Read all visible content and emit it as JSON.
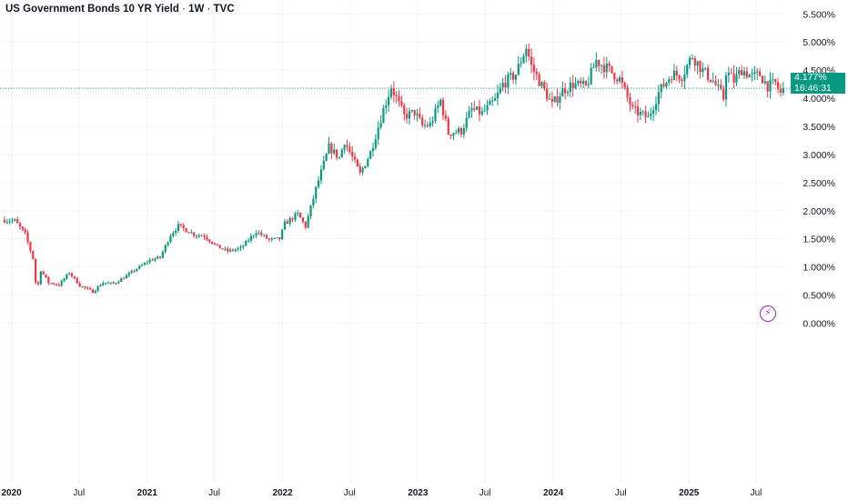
{
  "header": {
    "symbol": "US Government Bonds 10 YR Yield",
    "interval": "1W",
    "source": "TVC",
    "separator": "·"
  },
  "price_tag": {
    "value": "4.177%",
    "countdown": "16:46:31",
    "color": "#089981"
  },
  "colors": {
    "up": "#089981",
    "down": "#f23645",
    "grid": "#f0f3fa",
    "axis_text": "#131722",
    "price_line": "#089981",
    "alert_icon": "#9c27b0"
  },
  "alert_icon": "lightning-icon",
  "chart_data": {
    "type": "candlestick",
    "timeframe": "1W",
    "y_axis": {
      "ticks": [
        "5.500%",
        "5.000%",
        "4.500%",
        "4.000%",
        "3.500%",
        "3.000%",
        "2.500%",
        "2.000%",
        "1.500%",
        "1.000%",
        "0.500%",
        "0.000%"
      ],
      "tick_values": [
        5.5,
        5.0,
        4.5,
        4.0,
        3.5,
        3.0,
        2.5,
        2.0,
        1.5,
        1.0,
        0.5,
        0.0
      ],
      "range": [
        -3.0,
        5.65
      ],
      "position": "right"
    },
    "x_axis": {
      "ticks": [
        {
          "label": "2020",
          "date": "2020-01-01",
          "bold": true
        },
        {
          "label": "Jul",
          "date": "2020-07-01",
          "bold": false
        },
        {
          "label": "2021",
          "date": "2021-01-01",
          "bold": true
        },
        {
          "label": "Jul",
          "date": "2021-07-01",
          "bold": false
        },
        {
          "label": "2022",
          "date": "2022-01-01",
          "bold": true
        },
        {
          "label": "Jul",
          "date": "2022-07-01",
          "bold": false
        },
        {
          "label": "2023",
          "date": "2023-01-01",
          "bold": true
        },
        {
          "label": "Jul",
          "date": "2023-07-01",
          "bold": false
        },
        {
          "label": "2024",
          "date": "2024-01-01",
          "bold": true
        },
        {
          "label": "Jul",
          "date": "2024-07-01",
          "bold": false
        },
        {
          "label": "2025",
          "date": "2025-01-01",
          "bold": true
        },
        {
          "label": "Jul",
          "date": "2025-07-01",
          "bold": false
        }
      ],
      "range": [
        "2019-12-01",
        "2025-09-15"
      ]
    },
    "current_value": 4.177,
    "grid": true,
    "close_path": [
      [
        "2019-12-06",
        1.84
      ],
      [
        "2020-01-10",
        1.82
      ],
      [
        "2020-02-07",
        1.58
      ],
      [
        "2020-02-28",
        1.15
      ],
      [
        "2020-03-09",
        0.55
      ],
      [
        "2020-03-20",
        0.94
      ],
      [
        "2020-04-10",
        0.72
      ],
      [
        "2020-05-08",
        0.68
      ],
      [
        "2020-06-05",
        0.9
      ],
      [
        "2020-07-03",
        0.67
      ],
      [
        "2020-08-07",
        0.56
      ],
      [
        "2020-09-04",
        0.72
      ],
      [
        "2020-10-02",
        0.7
      ],
      [
        "2020-11-06",
        0.84
      ],
      [
        "2020-12-04",
        0.97
      ],
      [
        "2021-01-08",
        1.12
      ],
      [
        "2021-02-05",
        1.17
      ],
      [
        "2021-03-05",
        1.57
      ],
      [
        "2021-03-26",
        1.73
      ],
      [
        "2021-05-07",
        1.58
      ],
      [
        "2021-06-04",
        1.55
      ],
      [
        "2021-07-09",
        1.36
      ],
      [
        "2021-08-06",
        1.28
      ],
      [
        "2021-09-10",
        1.33
      ],
      [
        "2021-10-22",
        1.63
      ],
      [
        "2021-11-26",
        1.48
      ],
      [
        "2021-12-24",
        1.5
      ],
      [
        "2022-01-07",
        1.77
      ],
      [
        "2022-02-11",
        1.94
      ],
      [
        "2022-03-04",
        1.72
      ],
      [
        "2022-04-01",
        2.39
      ],
      [
        "2022-05-06",
        3.13
      ],
      [
        "2022-06-03",
        2.94
      ],
      [
        "2022-06-17",
        3.24
      ],
      [
        "2022-07-29",
        2.65
      ],
      [
        "2022-08-26",
        3.04
      ],
      [
        "2022-09-30",
        3.8
      ],
      [
        "2022-10-21",
        4.21
      ],
      [
        "2022-11-25",
        3.68
      ],
      [
        "2022-12-23",
        3.75
      ],
      [
        "2023-01-13",
        3.51
      ],
      [
        "2023-02-03",
        3.53
      ],
      [
        "2023-03-03",
        3.96
      ],
      [
        "2023-03-24",
        3.38
      ],
      [
        "2023-04-28",
        3.42
      ],
      [
        "2023-05-26",
        3.8
      ],
      [
        "2023-06-23",
        3.73
      ],
      [
        "2023-07-28",
        3.96
      ],
      [
        "2023-08-18",
        4.25
      ],
      [
        "2023-09-22",
        4.43
      ],
      [
        "2023-10-20",
        4.91
      ],
      [
        "2023-11-03",
        4.57
      ],
      [
        "2023-12-01",
        4.22
      ],
      [
        "2023-12-29",
        3.88
      ],
      [
        "2024-01-26",
        4.14
      ],
      [
        "2024-02-23",
        4.25
      ],
      [
        "2024-03-29",
        4.2
      ],
      [
        "2024-04-26",
        4.67
      ],
      [
        "2024-05-31",
        4.5
      ],
      [
        "2024-06-28",
        4.34
      ],
      [
        "2024-08-02",
        3.79
      ],
      [
        "2024-09-13",
        3.65
      ],
      [
        "2024-10-11",
        4.1
      ],
      [
        "2024-11-15",
        4.43
      ],
      [
        "2024-12-13",
        4.4
      ],
      [
        "2025-01-10",
        4.76
      ],
      [
        "2025-02-07",
        4.49
      ],
      [
        "2025-03-07",
        4.31
      ],
      [
        "2025-04-04",
        4.0
      ],
      [
        "2025-04-11",
        4.48
      ],
      [
        "2025-05-02",
        4.31
      ],
      [
        "2025-05-23",
        4.51
      ],
      [
        "2025-06-20",
        4.38
      ],
      [
        "2025-07-11",
        4.42
      ],
      [
        "2025-08-01",
        4.22
      ],
      [
        "2025-08-22",
        4.26
      ],
      [
        "2025-09-05",
        4.08
      ],
      [
        "2025-09-12",
        4.177
      ]
    ]
  }
}
